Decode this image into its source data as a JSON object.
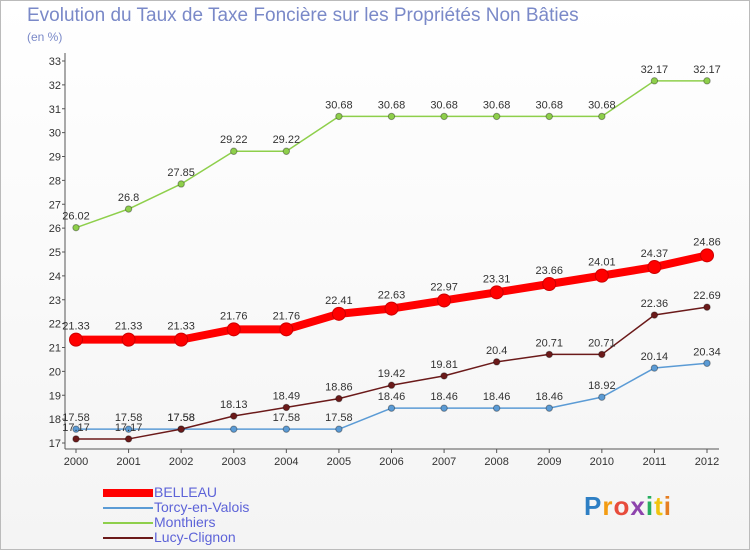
{
  "chart_data": {
    "type": "line",
    "title": "Evolution du Taux de Taxe Foncière sur les Propriétés Non Bâties",
    "ylabel": "(en %)",
    "x": [
      "2000",
      "2001",
      "2002",
      "2003",
      "2004",
      "2005",
      "2006",
      "2007",
      "2008",
      "2009",
      "2010",
      "2011",
      "2012"
    ],
    "ylim": [
      17,
      33
    ],
    "yticks": [
      17,
      18,
      19,
      20,
      21,
      22,
      23,
      24,
      25,
      26,
      27,
      28,
      29,
      30,
      31,
      32,
      33
    ],
    "grid": false,
    "legend_position": "bottom-left",
    "series": [
      {
        "name": "BELLEAU",
        "color": "#ff0000",
        "values": [
          21.33,
          21.33,
          21.33,
          21.76,
          21.76,
          22.41,
          22.63,
          22.97,
          23.31,
          23.66,
          24.01,
          24.37,
          24.86
        ],
        "labels": [
          "21.33",
          "21.33",
          "21.33",
          "21.76",
          "21.76",
          "22.41",
          "22.63",
          "22.97",
          "23.31",
          "23.66",
          "24.01",
          "24.37",
          "24.86"
        ]
      },
      {
        "name": "Torcy-en-Valois",
        "color": "#5b9bd5",
        "values": [
          17.58,
          17.58,
          17.58,
          17.58,
          17.58,
          17.58,
          18.46,
          18.46,
          18.46,
          18.46,
          18.92,
          20.14,
          20.34
        ],
        "labels": [
          "17.58",
          "17.58",
          "17.58",
          "",
          "17.58",
          "17.58",
          "18.46",
          "18.46",
          "18.46",
          "18.46",
          "18.92",
          "20.14",
          "20.34"
        ]
      },
      {
        "name": "Monthiers",
        "color": "#8ecf4b",
        "values": [
          26.02,
          26.8,
          27.85,
          29.22,
          29.22,
          30.68,
          30.68,
          30.68,
          30.68,
          30.68,
          30.68,
          32.17,
          32.17
        ],
        "labels": [
          "26.02",
          "26.8",
          "27.85",
          "29.22",
          "29.22",
          "30.68",
          "30.68",
          "30.68",
          "30.68",
          "30.68",
          "30.68",
          "32.17",
          "32.17"
        ]
      },
      {
        "name": "Lucy-Clignon",
        "color": "#6b1a1a",
        "values": [
          17.17,
          17.17,
          17.58,
          18.13,
          18.49,
          18.86,
          19.42,
          19.81,
          20.4,
          20.71,
          20.71,
          22.36,
          22.69
        ],
        "labels": [
          "17.17",
          "17.17",
          "17.58",
          "18.13",
          "18.49",
          "18.86",
          "19.42",
          "19.81",
          "20.4",
          "20.71",
          "20.71",
          "22.36",
          "22.69"
        ]
      }
    ]
  },
  "logo": {
    "letters": [
      "P",
      "r",
      "o",
      "x",
      "i",
      "t",
      "i"
    ],
    "colors": [
      "#2e7fc4",
      "#f39c12",
      "#e74c3c",
      "#8e44ad",
      "#27ae60",
      "#f1c40f",
      "#e67e22"
    ]
  }
}
